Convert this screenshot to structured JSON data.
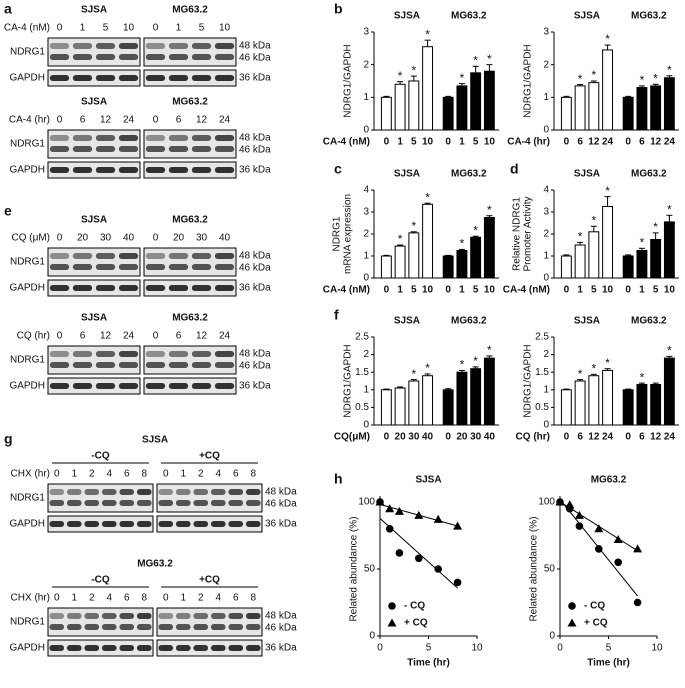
{
  "panel_letters": [
    "a",
    "b",
    "c",
    "d",
    "e",
    "f",
    "g",
    "h"
  ],
  "blots": [
    {
      "groups": [
        "SJSA",
        "MG63.2"
      ],
      "treatment": "CA-4 (nM)",
      "lanes": [
        "0",
        "1",
        "5",
        "10"
      ],
      "rows": [
        "NDRG1",
        "GAPDH"
      ],
      "kda": [
        "48 kDa",
        "46 kDa",
        "36 kDa"
      ]
    },
    {
      "groups": [
        "SJSA",
        "MG63.2"
      ],
      "treatment": "CA-4 (hr)",
      "lanes": [
        "0",
        "6",
        "12",
        "24"
      ],
      "rows": [
        "NDRG1",
        "GAPDH"
      ],
      "kda": [
        "48 kDa",
        "46 kDa",
        "36 kDa"
      ]
    },
    {
      "groups": [
        "SJSA",
        "MG63.2"
      ],
      "treatment": "CQ (μM)",
      "lanes": [
        "0",
        "20",
        "30",
        "40"
      ],
      "rows": [
        "NDRG1",
        "GAPDH"
      ],
      "kda": [
        "48 kDa",
        "46 kDa",
        "36 kDa"
      ]
    },
    {
      "groups": [
        "SJSA",
        "MG63.2"
      ],
      "treatment": "CQ (hr)",
      "lanes": [
        "0",
        "6",
        "12",
        "24"
      ],
      "rows": [
        "NDRG1",
        "GAPDH"
      ],
      "kda": [
        "48 kDa",
        "46 kDa",
        "36 kDa"
      ]
    },
    {
      "header": "SJSA",
      "groups": [
        "-CQ",
        "+CQ"
      ],
      "treatment": "CHX (hr)",
      "lanes": [
        "0",
        "1",
        "2",
        "4",
        "6",
        "8"
      ],
      "rows": [
        "NDRG1",
        "GAPDH"
      ],
      "kda": [
        "48 kDa",
        "46 kDa",
        "36 kDa"
      ]
    },
    {
      "header": "MG63.2",
      "groups": [
        "-CQ",
        "+CQ"
      ],
      "treatment": "CHX (hr)",
      "lanes": [
        "0",
        "1",
        "2",
        "4",
        "6",
        "8"
      ],
      "rows": [
        "NDRG1",
        "GAPDH"
      ],
      "kda": [
        "48 kDa",
        "46 kDa",
        "36 kDa"
      ]
    }
  ],
  "chart_data": [
    {
      "type": "bar",
      "ylabel": "NDRG1/GAPDH",
      "xlabel": "CA-4 (nM)",
      "categories": [
        "0",
        "1",
        "5",
        "10"
      ],
      "ylim": [
        0,
        3
      ],
      "yticks": [
        0,
        1,
        2,
        3
      ],
      "sig_label": "*",
      "series": [
        {
          "name": "SJSA",
          "color": "#ffffff",
          "values": [
            1,
            1.4,
            1.5,
            2.55
          ],
          "errors": [
            0.03,
            0.08,
            0.15,
            0.2
          ],
          "significant": [
            false,
            true,
            true,
            true
          ]
        },
        {
          "name": "MG63.2",
          "color": "#000000",
          "values": [
            1,
            1.35,
            1.75,
            1.8
          ],
          "errors": [
            0.03,
            0.07,
            0.2,
            0.2
          ],
          "significant": [
            false,
            true,
            true,
            true
          ]
        }
      ]
    },
    {
      "type": "bar",
      "ylabel": "NDRG1/GAPDH",
      "xlabel": "CA-4 (hr)",
      "categories": [
        "0",
        "6",
        "12",
        "24"
      ],
      "ylim": [
        0,
        3
      ],
      "yticks": [
        0,
        1,
        2,
        3
      ],
      "sig_label": "*",
      "series": [
        {
          "name": "SJSA",
          "color": "#ffffff",
          "values": [
            1,
            1.35,
            1.45,
            2.45
          ],
          "errors": [
            0.03,
            0.04,
            0.05,
            0.15
          ],
          "significant": [
            false,
            true,
            true,
            true
          ]
        },
        {
          "name": "MG63.2",
          "color": "#000000",
          "values": [
            1,
            1.3,
            1.35,
            1.6
          ],
          "errors": [
            0.03,
            0.05,
            0.05,
            0.06
          ],
          "significant": [
            false,
            true,
            true,
            true
          ]
        }
      ]
    },
    {
      "type": "bar",
      "ylabel": [
        "NDRG1",
        "mRNA expression"
      ],
      "xlabel": "CA-4 (nM)",
      "categories": [
        "0",
        "1",
        "5",
        "10"
      ],
      "ylim": [
        0,
        4
      ],
      "yticks": [
        0,
        1,
        2,
        3,
        4
      ],
      "sig_label": "*",
      "series": [
        {
          "name": "SJSA",
          "color": "#ffffff",
          "values": [
            1,
            1.45,
            2.05,
            3.35
          ],
          "errors": [
            0.03,
            0.05,
            0.05,
            0.05
          ],
          "significant": [
            false,
            true,
            true,
            true
          ]
        },
        {
          "name": "MG63.2",
          "color": "#000000",
          "values": [
            1,
            1.25,
            1.85,
            2.75
          ],
          "errors": [
            0.03,
            0.05,
            0.05,
            0.08
          ],
          "significant": [
            false,
            true,
            true,
            true
          ]
        }
      ]
    },
    {
      "type": "bar",
      "ylabel": [
        "Relative NDRG1",
        "Promoter Activity"
      ],
      "xlabel": "CA-4 (nM)",
      "categories": [
        "0",
        "1",
        "5",
        "10"
      ],
      "ylim": [
        0,
        4
      ],
      "yticks": [
        0,
        1,
        2,
        3,
        4
      ],
      "sig_label": "*",
      "series": [
        {
          "name": "SJSA",
          "color": "#ffffff",
          "values": [
            1,
            1.5,
            2.1,
            3.25
          ],
          "errors": [
            0.05,
            0.12,
            0.25,
            0.45
          ],
          "significant": [
            false,
            true,
            true,
            true
          ]
        },
        {
          "name": "MG63.2",
          "color": "#000000",
          "values": [
            1,
            1.25,
            1.75,
            2.55
          ],
          "errors": [
            0.05,
            0.1,
            0.3,
            0.3
          ],
          "significant": [
            false,
            true,
            true,
            true
          ]
        }
      ]
    },
    {
      "type": "bar",
      "ylabel": "NDRG1/GAPDH",
      "xlabel": "CQ(μM)",
      "categories": [
        "0",
        "20",
        "30",
        "40"
      ],
      "ylim": [
        0,
        2.5
      ],
      "yticks": [
        0,
        0.5,
        1,
        1.5,
        2,
        2.5
      ],
      "sig_label": "*",
      "series": [
        {
          "name": "SJSA",
          "color": "#ffffff",
          "values": [
            1,
            1.05,
            1.25,
            1.4
          ],
          "errors": [
            0.02,
            0.03,
            0.04,
            0.05
          ],
          "significant": [
            false,
            false,
            true,
            true
          ]
        },
        {
          "name": "MG63.2",
          "color": "#000000",
          "values": [
            1,
            1.5,
            1.6,
            1.9
          ],
          "errors": [
            0.03,
            0.05,
            0.05,
            0.06
          ],
          "significant": [
            false,
            true,
            true,
            true
          ]
        }
      ]
    },
    {
      "type": "bar",
      "ylabel": "NDRG1/GAPDH",
      "xlabel": "CQ (hr)",
      "categories": [
        "0",
        "6",
        "12",
        "24"
      ],
      "ylim": [
        0,
        2.5
      ],
      "yticks": [
        0,
        0.5,
        1,
        1.5,
        2,
        2.5
      ],
      "sig_label": "*",
      "series": [
        {
          "name": "SJSA",
          "color": "#ffffff",
          "values": [
            1,
            1.25,
            1.4,
            1.55
          ],
          "errors": [
            0.02,
            0.04,
            0.04,
            0.05
          ],
          "significant": [
            false,
            true,
            true,
            true
          ]
        },
        {
          "name": "MG63.2",
          "color": "#000000",
          "values": [
            1,
            1.15,
            1.15,
            1.9
          ],
          "errors": [
            0.02,
            0.04,
            0.04,
            0.05
          ],
          "significant": [
            false,
            true,
            false,
            true
          ]
        }
      ]
    },
    {
      "type": "scatter",
      "title": "SJSA",
      "ylabel": "Related abundance (%)",
      "xlabel": "Time (hr)",
      "x": [
        0,
        1,
        2,
        4,
        6,
        8
      ],
      "xlim": [
        0,
        10
      ],
      "xticks": [
        0,
        5,
        10
      ],
      "ylim": [
        0,
        100
      ],
      "yticks": [
        0,
        50,
        100
      ],
      "legend": "lower left",
      "series": [
        {
          "name": "- CQ",
          "marker": "circle",
          "color": "#000000",
          "values": [
            100,
            80,
            62,
            58,
            50,
            40
          ]
        },
        {
          "name": "+ CQ",
          "marker": "triangle",
          "color": "#000000",
          "values": [
            100,
            95,
            93,
            90,
            87,
            82
          ]
        }
      ]
    },
    {
      "type": "scatter",
      "title": "MG63.2",
      "ylabel": "Related abundance (%)",
      "xlabel": "Time (hr)",
      "x": [
        0,
        1,
        2,
        4,
        6,
        8
      ],
      "xlim": [
        0,
        10
      ],
      "xticks": [
        0,
        5,
        10
      ],
      "ylim": [
        0,
        100
      ],
      "yticks": [
        0,
        50,
        100
      ],
      "legend": "lower left",
      "series": [
        {
          "name": "- CQ",
          "marker": "circle",
          "color": "#000000",
          "values": [
            100,
            95,
            82,
            65,
            55,
            25
          ]
        },
        {
          "name": "+ CQ",
          "marker": "triangle",
          "color": "#000000",
          "values": [
            100,
            98,
            90,
            80,
            72,
            65
          ]
        }
      ]
    }
  ]
}
